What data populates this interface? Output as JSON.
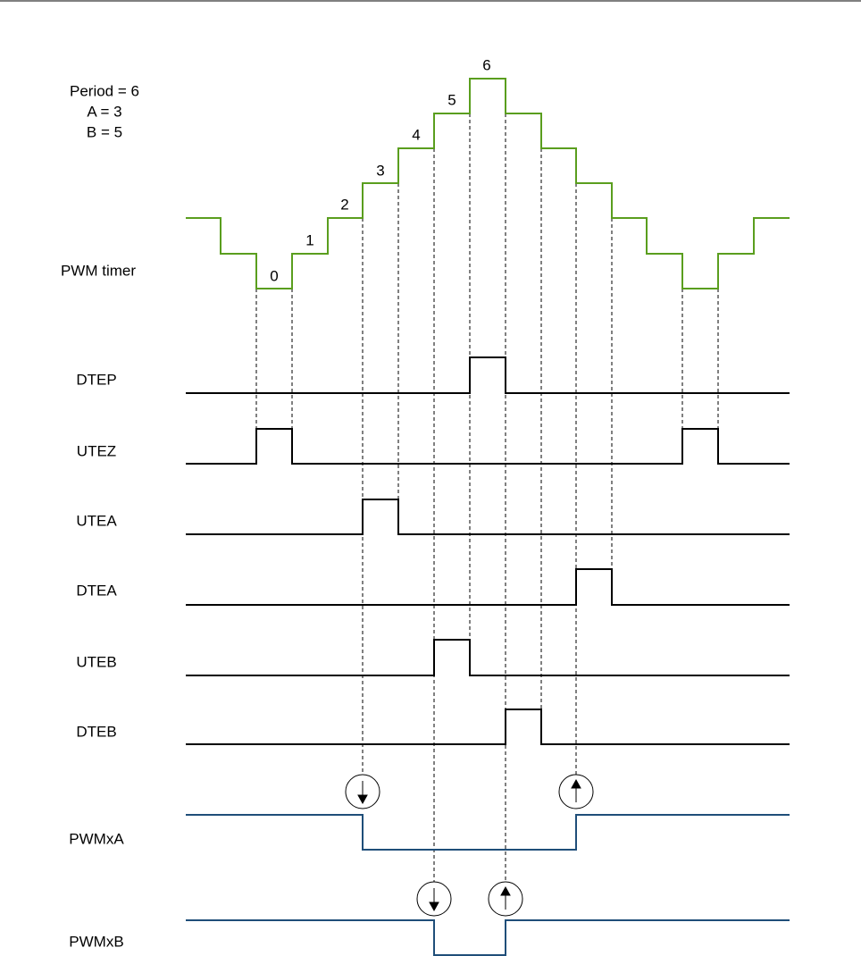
{
  "parameters": [
    "Period = 6",
    "A = 3",
    "B = 5"
  ],
  "timer": {
    "label": "PWM timer",
    "counts": [
      0,
      1,
      2,
      3,
      4,
      5,
      6
    ]
  },
  "signals": [
    "DTEP",
    "UTEZ",
    "UTEA",
    "DTEA",
    "UTEB",
    "DTEB",
    "PWMxA",
    "PWMxB"
  ]
}
